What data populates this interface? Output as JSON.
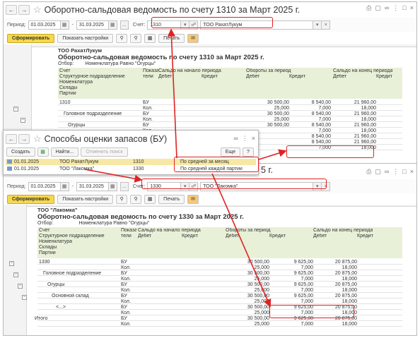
{
  "w1": {
    "title": "Оборотно-сальдовая ведомость по счету 1310  за Март 2025 г.",
    "filter": {
      "period_label": "Период:",
      "date_from": "01.03.2025",
      "dash": "-",
      "date_to": "31.03.2025",
      "account_label": "Счет:",
      "account": "1310",
      "org": "ТОО РахатЛукум"
    },
    "buttons": {
      "generate": "Сформировать",
      "settings": "Показать настройки",
      "print": "Печать"
    },
    "report": {
      "org": "ТОО РахатЛукум",
      "title": "Оборотно-сальдовая ведомость по счету 1310  за Март 2025 г.",
      "selection_label": "Отбор:",
      "selection": "Номенклатура Равно \"Огурцы\"",
      "hdr": {
        "account": "Счет",
        "indicators": "Показа тели",
        "open": "Сальдо на начало периода",
        "turn": "Обороты за период",
        "close": "Сальдо на конец периода",
        "debit": "Дебет",
        "credit": "Кредит"
      },
      "dims": [
        "Структурное подразделение",
        "Номенклатура",
        "Склады",
        "Партии"
      ],
      "rows": [
        {
          "label": "1310",
          "ind": "БУ",
          "td": "30 500,00",
          "tc": "8 540,00",
          "cd": "21 960,00"
        },
        {
          "label": "",
          "ind": "Кол.",
          "td": "25,000",
          "tc": "7,000",
          "cd": "18,000"
        },
        {
          "label": "Головное подразделение",
          "ind": "БУ",
          "td": "30 500,00",
          "tc": "8 540,00",
          "cd": "21 960,00"
        },
        {
          "label": "",
          "ind": "Кол.",
          "td": "25,000",
          "tc": "7,000",
          "cd": "18,000"
        },
        {
          "label": "Огурцы",
          "ind": "БУ",
          "td": "30 500,00",
          "tc": "8 540,00",
          "cd": "21 960,00"
        },
        {
          "label": "",
          "ind": "Кол.",
          "td": "",
          "tc": "7,000",
          "cd": "18,000"
        },
        {
          "label": "",
          "ind": "",
          "td": "",
          "tc": "8 540,00",
          "cd": "21 960,00"
        },
        {
          "label": "",
          "ind": "",
          "td": "",
          "tc": "8 540,00",
          "cd": "21 960,00"
        },
        {
          "label": "",
          "ind": "",
          "td": "",
          "tc": "7,000",
          "cd": "18,000"
        }
      ]
    }
  },
  "w2": {
    "title": "Способы оценки запасов (БУ)",
    "buttons": {
      "create": "Создать",
      "find": "Найти...",
      "cancel_search": "Отменить поиск",
      "more": "Еще",
      "help": "?"
    },
    "rows": [
      {
        "date": "01.01.2025",
        "org": "ТОО РахатЛукум",
        "acc": "1310",
        "method": "По средней за месяц"
      },
      {
        "date": "01.01.2025",
        "org": "ТОО \"Лакомка\"",
        "acc": "1330",
        "method": "По средней каждой партии"
      }
    ]
  },
  "w3": {
    "title_tail": "5 г.",
    "filter": {
      "period_label": "Период:",
      "date_from": "01.03.2025",
      "dash": "-",
      "date_to": "31.03.2025",
      "account_label": "Счет:",
      "account": "1330",
      "org": "ТОО \"Лакомка\""
    },
    "buttons": {
      "generate": "Сформировать",
      "settings": "Показать настройки",
      "print": "Печать"
    },
    "report": {
      "org": "ТОО \"Лакомка\"",
      "title": "Оборотно-сальдовая ведомость по счету 1330  за Март 2025 г.",
      "selection_label": "Отбор:",
      "selection": "Номенклатура Равно \"Огурцы\"",
      "hdr": {
        "account": "Счет",
        "indicators": "Показа тели",
        "open": "Сальдо на начало периода",
        "turn": "Обороты за период",
        "close": "Сальдо на конец периода",
        "debit": "Дебет",
        "credit": "Кредит"
      },
      "dims": [
        "Структурное подразделение",
        "Номенклатура",
        "Склады",
        "Партии"
      ],
      "rows": [
        {
          "label": "1330",
          "ind": "БУ",
          "td": "30 500,00",
          "tc": "9 625,00",
          "cd": "20 875,00"
        },
        {
          "label": "",
          "ind": "Кол.",
          "td": "25,000",
          "tc": "7,000",
          "cd": "18,000"
        },
        {
          "label": "Головное подразделение",
          "ind": "БУ",
          "td": "30 500,00",
          "tc": "9 625,00",
          "cd": "20 875,00"
        },
        {
          "label": "",
          "ind": "Кол.",
          "td": "25,000",
          "tc": "7,000",
          "cd": "18,000"
        },
        {
          "label": "Огурцы",
          "ind": "БУ",
          "td": "30 500,00",
          "tc": "9 625,00",
          "cd": "20 875,00"
        },
        {
          "label": "",
          "ind": "Кол.",
          "td": "25,000",
          "tc": "7,000",
          "cd": "18,000"
        },
        {
          "label": "Основной склад",
          "ind": "БУ",
          "td": "30 500,00",
          "tc": "9 625,00",
          "cd": "20 875,00"
        },
        {
          "label": "",
          "ind": "Кол.",
          "td": "25,000",
          "tc": "7,000",
          "cd": "18,000"
        },
        {
          "label": "<...>",
          "ind": "БУ",
          "td": "30 500,00",
          "tc": "9 625,00",
          "cd": "20 875,00"
        },
        {
          "label": "",
          "ind": "Кол.",
          "td": "25,000",
          "tc": "7,000",
          "cd": "18,000"
        },
        {
          "label": "Итого",
          "ind": "БУ",
          "td": "30 500,00",
          "tc": "9 625,00",
          "cd": "20 875,00"
        },
        {
          "label": "",
          "ind": "Кол.",
          "td": "25,000",
          "tc": "7,000",
          "cd": "18,000"
        }
      ]
    }
  }
}
